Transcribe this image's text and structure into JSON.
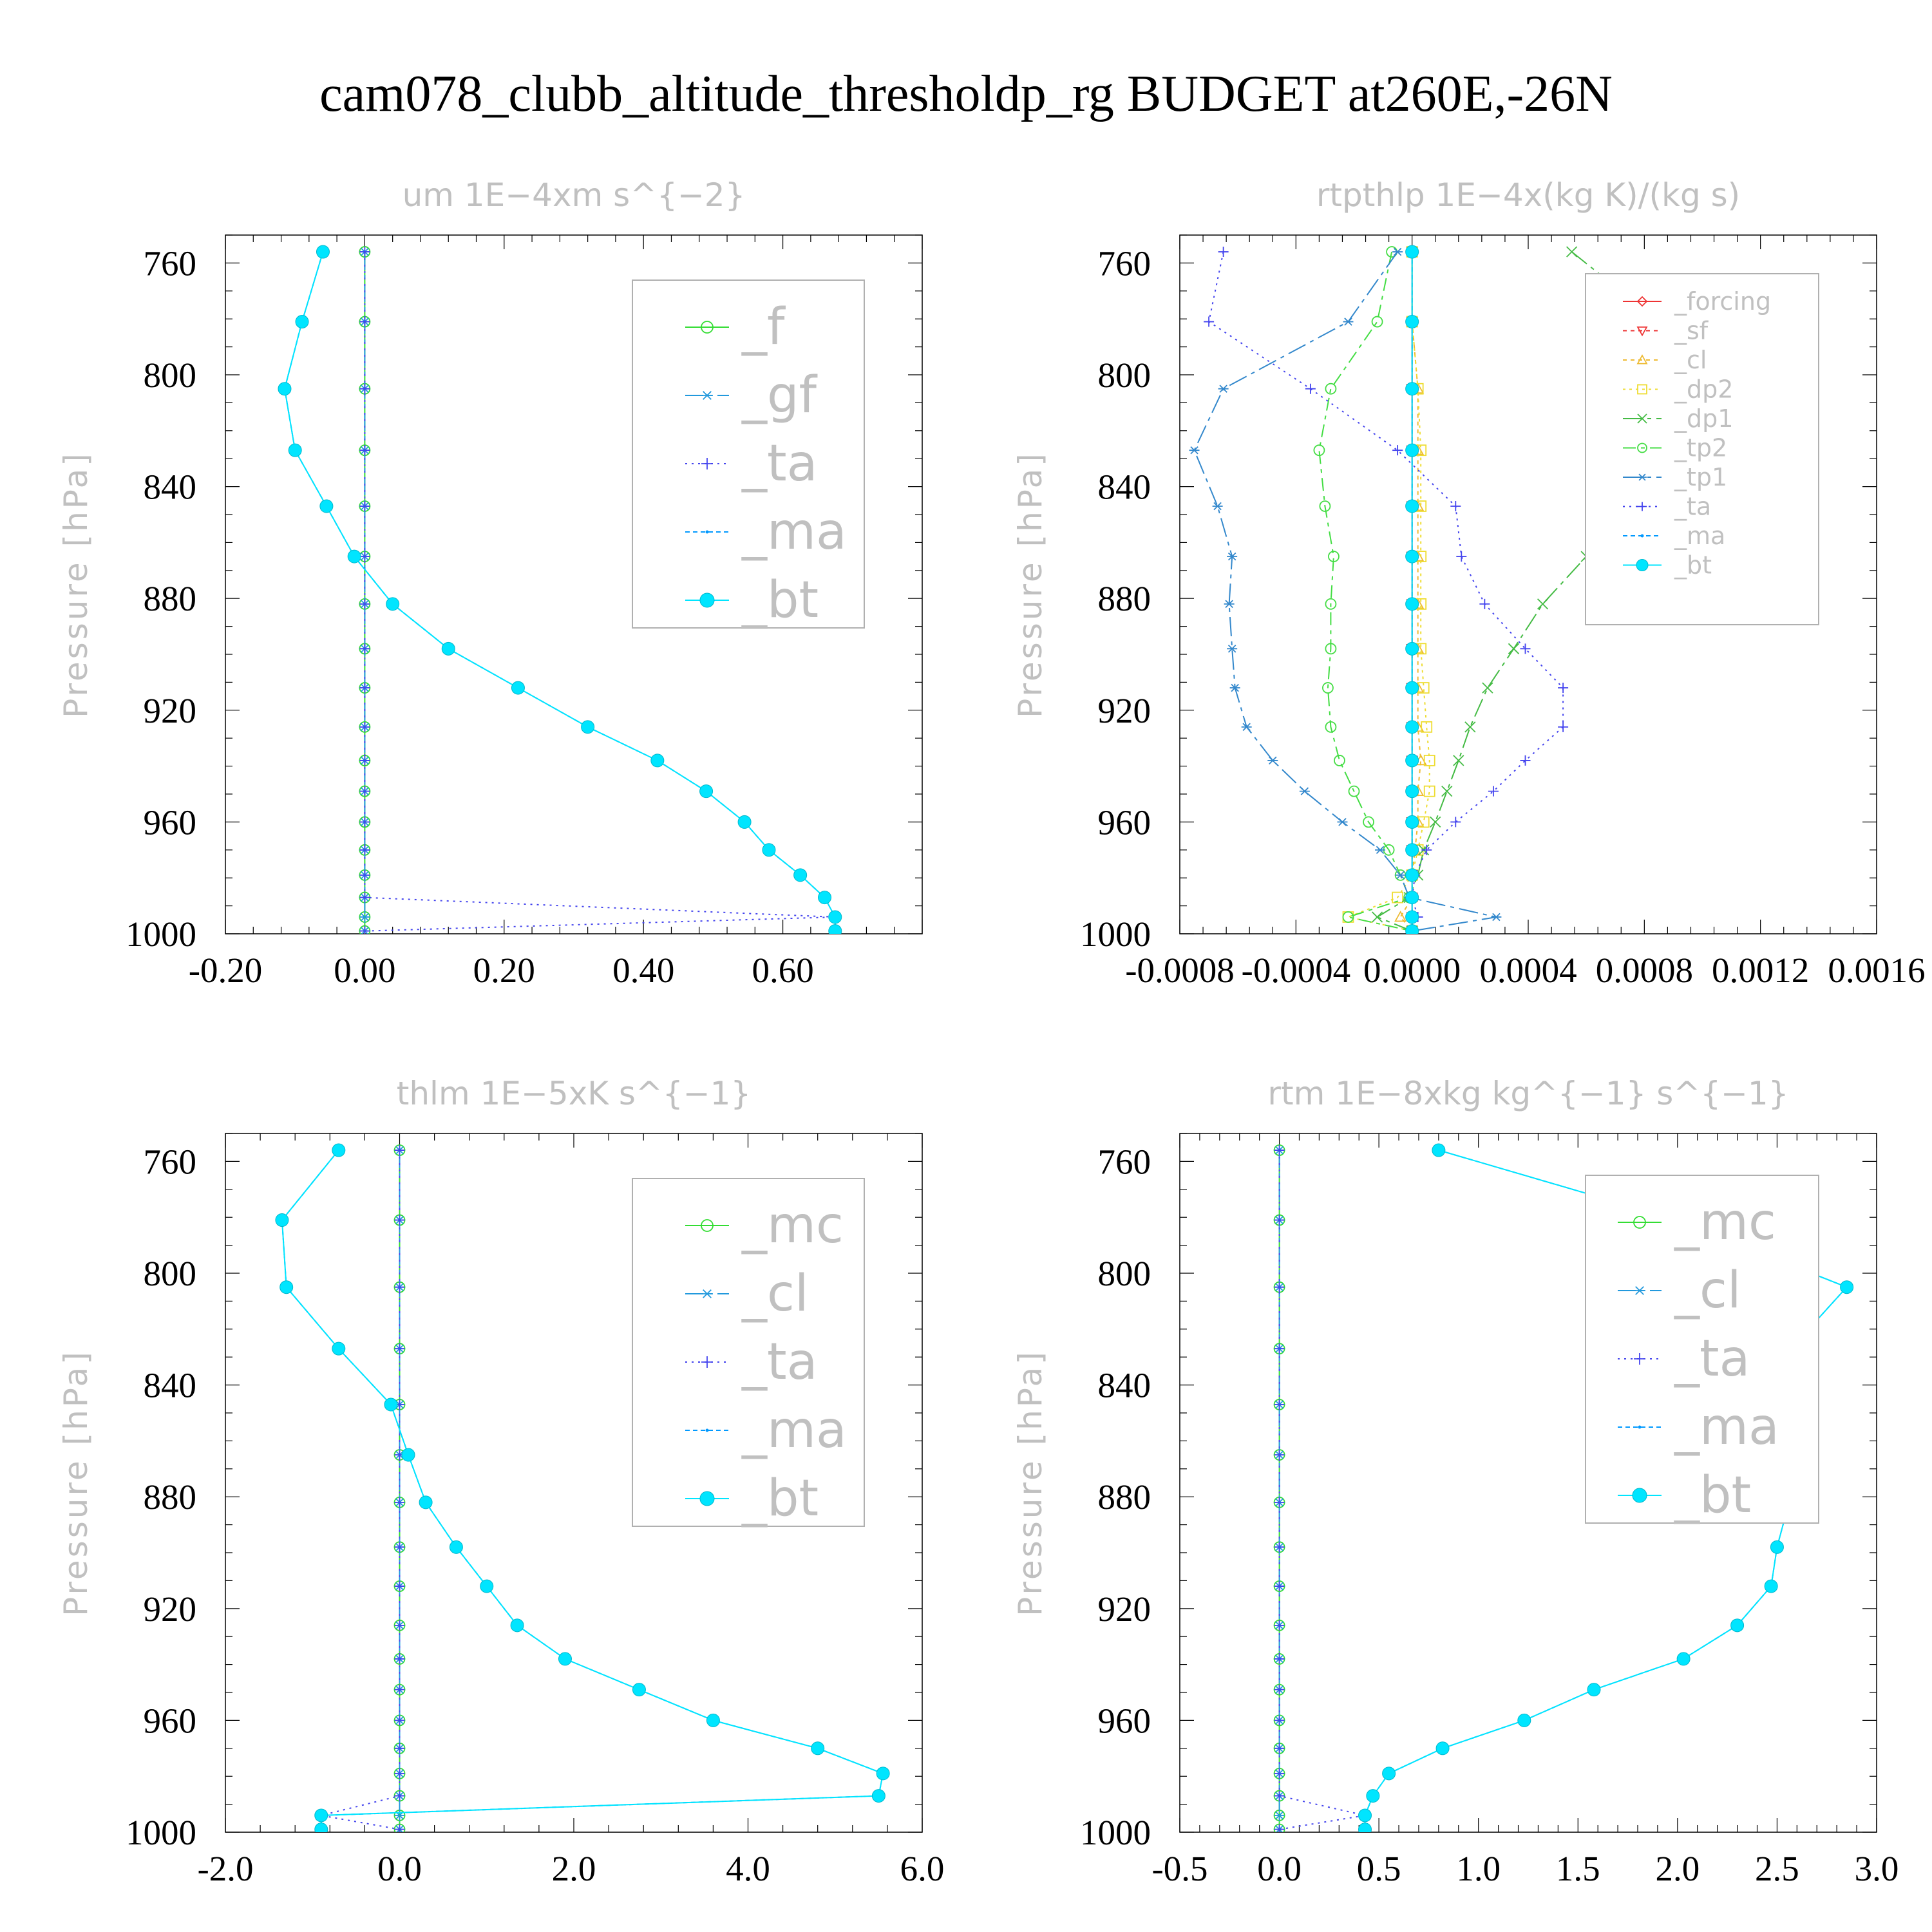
{
  "page": {
    "title": "cam078_clubb_altitude_thresholdp_rg  BUDGET at260E,-26N"
  },
  "chart_data": [
    {
      "type": "line",
      "title": "um   1E−4xm s^{−2}",
      "ylabel": "Pressure [hPa]",
      "xlabel": "",
      "xlim": [
        -0.2,
        0.8
      ],
      "ylim": [
        1000,
        750
      ],
      "xticks": [
        -0.2,
        0.0,
        0.2,
        0.4,
        0.6
      ],
      "xtick_labels": [
        "-0.20",
        "0.00",
        "0.20",
        "0.40",
        "0.60"
      ],
      "yticks": [
        760,
        800,
        840,
        880,
        920,
        960,
        1000
      ],
      "legend_position": "upper-right",
      "pressure": [
        756,
        781,
        805,
        827,
        847,
        865,
        882,
        898,
        912,
        926,
        938,
        949,
        960,
        970,
        979,
        987,
        994,
        999
      ],
      "series": [
        {
          "name": "_f",
          "color": "#33dd33",
          "marker": "circle",
          "dash": "",
          "values": [
            0,
            0,
            0,
            0,
            0,
            0,
            0,
            0,
            0,
            0,
            0,
            0,
            0,
            0,
            0,
            0,
            0,
            0
          ]
        },
        {
          "name": "_gf",
          "color": "#2299dd",
          "marker": "asterisk",
          "dash": "28 8 6 8",
          "values": [
            0,
            0,
            0,
            0,
            0,
            0,
            0,
            0,
            0,
            0,
            0,
            0,
            0,
            0,
            0,
            0,
            0,
            0
          ]
        },
        {
          "name": "_ta",
          "color": "#4444ee",
          "marker": "plus",
          "dash": "3 7",
          "values": [
            0,
            0,
            0,
            0,
            0,
            0,
            0,
            0,
            0,
            0,
            0,
            0,
            0,
            0,
            0,
            0,
            0.675,
            0
          ]
        },
        {
          "name": "_ma",
          "color": "#0099ff",
          "marker": "dot",
          "dash": "7 5",
          "values": [
            -0.06,
            -0.09,
            -0.115,
            -0.1,
            -0.055,
            -0.015,
            0.04,
            0.12,
            0.22,
            0.32,
            0.42,
            0.49,
            0.545,
            0.58,
            0.625,
            0.66,
            0.675,
            0.675
          ]
        },
        {
          "name": "_bt",
          "color": "#00e5ff",
          "marker": "filled",
          "dash": "",
          "values": [
            -0.06,
            -0.09,
            -0.115,
            -0.1,
            -0.055,
            -0.015,
            0.04,
            0.12,
            0.22,
            0.32,
            0.42,
            0.49,
            0.545,
            0.58,
            0.625,
            0.66,
            0.675,
            0.675
          ]
        }
      ]
    },
    {
      "type": "line",
      "title": "rtpthlp   1E−4x(kg K)/(kg s)",
      "ylabel": "Pressure [hPa]",
      "xlabel": "",
      "xlim": [
        -0.0008,
        0.0016
      ],
      "ylim": [
        1000,
        750
      ],
      "xticks": [
        -0.0008,
        -0.0004,
        0.0,
        0.0004,
        0.0008,
        0.0012,
        0.0016
      ],
      "xtick_labels": [
        "-0.0008",
        "-0.0004",
        "0.0000",
        "0.0004",
        "0.0008",
        "0.0012",
        "0.0016"
      ],
      "yticks": [
        760,
        800,
        840,
        880,
        920,
        960,
        1000
      ],
      "legend_position": "upper-right",
      "pressure": [
        756,
        781,
        805,
        827,
        847,
        865,
        882,
        898,
        912,
        926,
        938,
        949,
        960,
        970,
        979,
        987,
        994,
        999
      ],
      "series": [
        {
          "name": "_forcing",
          "color": "#ee3333",
          "marker": "diamond",
          "dash": "",
          "values": [
            0,
            0,
            0,
            0,
            0,
            0,
            0,
            0,
            0,
            0,
            0,
            0,
            0,
            0,
            0,
            0,
            0,
            0
          ]
        },
        {
          "name": "_sf",
          "color": "#ee3333",
          "marker": "tri-down",
          "dash": "6 6",
          "values": [
            0,
            0,
            0,
            0,
            0,
            0,
            0,
            0,
            0,
            0,
            0,
            0,
            0,
            0,
            0,
            0,
            0,
            0
          ]
        },
        {
          "name": "_cl",
          "color": "#eebb33",
          "marker": "tri-up",
          "dash": "6 6",
          "values": [
            0,
            0,
            2e-05,
            2e-05,
            2e-05,
            2e-05,
            2e-05,
            2e-05,
            2e-05,
            2e-05,
            3e-05,
            2e-05,
            2e-05,
            1e-05,
            0,
            0,
            -4e-05,
            0
          ]
        },
        {
          "name": "_dp2",
          "color": "#eedd33",
          "marker": "square",
          "dash": "4 6",
          "values": [
            0,
            0,
            2e-05,
            3e-05,
            3e-05,
            3e-05,
            3e-05,
            3e-05,
            4e-05,
            5e-05,
            6e-05,
            6e-05,
            4e-05,
            2e-05,
            0,
            -5e-05,
            -0.00022,
            0
          ]
        },
        {
          "name": "_dp1",
          "color": "#44bb44",
          "marker": "x",
          "dash": "30 8 6 8",
          "values": [
            0.00055,
            0.00085,
            0.00128,
            0.00122,
            0.0009,
            0.0006,
            0.00045,
            0.00035,
            0.00026,
            0.0002,
            0.00016,
            0.00012,
            8e-05,
            4e-05,
            2e-05,
            -1e-05,
            -0.00012,
            0
          ]
        },
        {
          "name": "_tp2",
          "color": "#44dd44",
          "marker": "circle",
          "dash": "20 8 6 8",
          "values": [
            -7e-05,
            -0.00012,
            -0.00028,
            -0.00032,
            -0.0003,
            -0.00027,
            -0.00028,
            -0.00028,
            -0.00029,
            -0.00028,
            -0.00025,
            -0.0002,
            -0.00015,
            -8e-05,
            -4e-05,
            -1e-05,
            -0.00022,
            0
          ]
        },
        {
          "name": "_tp1",
          "color": "#3388cc",
          "marker": "asterisk",
          "dash": "30 8 6 8",
          "values": [
            -5e-05,
            -0.00022,
            -0.00065,
            -0.00075,
            -0.00067,
            -0.00062,
            -0.00063,
            -0.00062,
            -0.00061,
            -0.00057,
            -0.00048,
            -0.00037,
            -0.00024,
            -0.00011,
            -4e-05,
            -1e-05,
            0.00029,
            0
          ]
        },
        {
          "name": "_ta",
          "color": "#4444ee",
          "marker": "plus",
          "dash": "3 7",
          "values": [
            -0.00065,
            -0.0007,
            -0.00035,
            -5e-05,
            0.00015,
            0.00017,
            0.00025,
            0.00039,
            0.00052,
            0.00052,
            0.00039,
            0.00028,
            0.00015,
            5e-05,
            1e-05,
            0,
            2e-05,
            0
          ]
        },
        {
          "name": "_ma",
          "color": "#0099ff",
          "marker": "dot",
          "dash": "7 5",
          "values": [
            0,
            0,
            0,
            0,
            0,
            0,
            0,
            0,
            0,
            0,
            0,
            0,
            0,
            0,
            0,
            0,
            0,
            0
          ]
        },
        {
          "name": "_bt",
          "color": "#00e5ff",
          "marker": "filled",
          "dash": "",
          "values": [
            0,
            0,
            0,
            0,
            0,
            0,
            0,
            0,
            0,
            0,
            0,
            0,
            0,
            0,
            0,
            0,
            0,
            0
          ]
        }
      ]
    },
    {
      "type": "line",
      "title": "thlm   1E−5xK s^{−1}",
      "ylabel": "Pressure [hPa]",
      "xlabel": "",
      "xlim": [
        -2.0,
        6.0
      ],
      "ylim": [
        1000,
        750
      ],
      "xticks": [
        -2.0,
        0.0,
        2.0,
        4.0,
        6.0
      ],
      "xtick_labels": [
        "-2.0",
        "0.0",
        "2.0",
        "4.0",
        "6.0"
      ],
      "yticks": [
        760,
        800,
        840,
        880,
        920,
        960,
        1000
      ],
      "legend_position": "upper-right",
      "pressure": [
        756,
        781,
        805,
        827,
        847,
        865,
        882,
        898,
        912,
        926,
        938,
        949,
        960,
        970,
        979,
        987,
        994,
        999
      ],
      "series": [
        {
          "name": "_mc",
          "color": "#33dd33",
          "marker": "circle",
          "dash": "",
          "values": [
            0,
            0,
            0,
            0,
            0,
            0,
            0,
            0,
            0,
            0,
            0,
            0,
            0,
            0,
            0,
            0,
            0,
            0
          ]
        },
        {
          "name": "_cl",
          "color": "#2299dd",
          "marker": "asterisk",
          "dash": "28 8 6 8",
          "values": [
            0,
            0,
            0,
            0,
            0,
            0,
            0,
            0,
            0,
            0,
            0,
            0,
            0,
            0,
            0,
            0,
            0,
            0
          ]
        },
        {
          "name": "_ta",
          "color": "#4444ee",
          "marker": "plus",
          "dash": "3 7",
          "values": [
            0,
            0,
            0,
            0,
            0,
            0,
            0,
            0,
            0,
            0,
            0,
            0,
            0,
            0,
            0,
            0,
            -0.9,
            0
          ]
        },
        {
          "name": "_ma",
          "color": "#0099ff",
          "marker": "dot",
          "dash": "7 5",
          "values": [
            -0.7,
            -1.35,
            -1.3,
            -0.7,
            -0.1,
            0.1,
            0.3,
            0.65,
            1.0,
            1.35,
            1.9,
            2.75,
            3.6,
            4.8,
            5.55,
            5.5,
            -0.9,
            -0.9
          ]
        },
        {
          "name": "_bt",
          "color": "#00e5ff",
          "marker": "filled",
          "dash": "",
          "values": [
            -0.7,
            -1.35,
            -1.3,
            -0.7,
            -0.1,
            0.1,
            0.3,
            0.65,
            1.0,
            1.35,
            1.9,
            2.75,
            3.6,
            4.8,
            5.55,
            5.5,
            -0.9,
            -0.9
          ]
        }
      ]
    },
    {
      "type": "line",
      "title": "rtm   1E−8xkg kg^{−1} s^{−1}",
      "ylabel": "Pressure [hPa]",
      "xlabel": "",
      "xlim": [
        -0.5,
        3.0
      ],
      "ylim": [
        1000,
        750
      ],
      "xticks": [
        -0.5,
        0.0,
        0.5,
        1.0,
        1.5,
        2.0,
        2.5,
        3.0
      ],
      "xtick_labels": [
        "-0.5",
        "0.0",
        "0.5",
        "1.0",
        "1.5",
        "2.0",
        "2.5",
        "3.0"
      ],
      "yticks": [
        760,
        800,
        840,
        880,
        920,
        960,
        1000
      ],
      "legend_position": "upper-right",
      "pressure": [
        756,
        781,
        805,
        827,
        847,
        865,
        882,
        898,
        912,
        926,
        938,
        949,
        960,
        970,
        979,
        987,
        994,
        999
      ],
      "series": [
        {
          "name": "_mc",
          "color": "#33dd33",
          "marker": "circle",
          "dash": "",
          "values": [
            0,
            0,
            0,
            0,
            0,
            0,
            0,
            0,
            0,
            0,
            0,
            0,
            0,
            0,
            0,
            0,
            0,
            0
          ]
        },
        {
          "name": "_cl",
          "color": "#2299dd",
          "marker": "asterisk",
          "dash": "28 8 6 8",
          "values": [
            0,
            0,
            0,
            0,
            0,
            0,
            0,
            0,
            0,
            0,
            0,
            0,
            0,
            0,
            0,
            0,
            0,
            0
          ]
        },
        {
          "name": "_ta",
          "color": "#4444ee",
          "marker": "plus",
          "dash": "3 7",
          "values": [
            0,
            0,
            0,
            0,
            0,
            0,
            0,
            0,
            0,
            0,
            0,
            0,
            0,
            0,
            0,
            0,
            0.43,
            0
          ]
        },
        {
          "name": "_ma",
          "color": "#0099ff",
          "marker": "dot",
          "dash": "7 5",
          "values": [
            0.8,
            2.0,
            2.85,
            2.57,
            2.3,
            2.35,
            2.56,
            2.5,
            2.47,
            2.3,
            2.03,
            1.58,
            1.23,
            0.82,
            0.55,
            0.47,
            0.43,
            0.43
          ]
        },
        {
          "name": "_bt",
          "color": "#00e5ff",
          "marker": "filled",
          "dash": "",
          "values": [
            0.8,
            2.0,
            2.85,
            2.57,
            2.3,
            2.35,
            2.56,
            2.5,
            2.47,
            2.3,
            2.03,
            1.58,
            1.23,
            0.82,
            0.55,
            0.47,
            0.43,
            0.43
          ]
        }
      ]
    }
  ]
}
